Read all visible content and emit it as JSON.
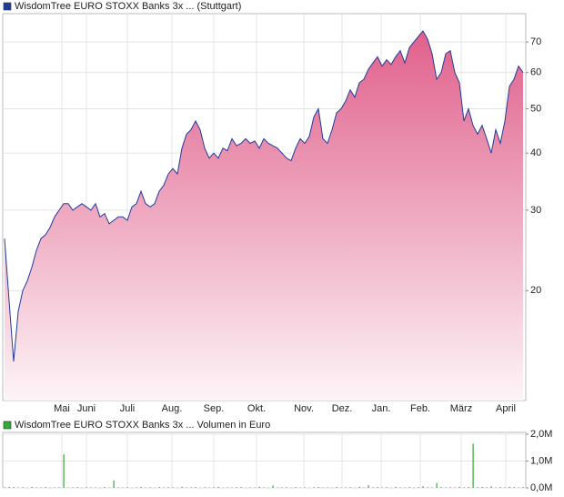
{
  "chart_data": [
    {
      "type": "area",
      "log_scale": true,
      "grid": true,
      "series": [
        {
          "name": "WisdomTree EURO STOXX Banks 3x ... (Stuttgart)",
          "color": "#1f3c9c",
          "values": [
            26,
            19,
            14,
            18,
            20,
            21,
            22.5,
            24.5,
            26,
            26.5,
            27.5,
            29,
            30,
            31,
            31,
            30,
            30.5,
            31,
            30.5,
            30,
            31,
            29,
            29.5,
            28,
            28.5,
            29,
            29,
            28.5,
            30.5,
            31,
            33,
            31,
            30.5,
            31,
            33,
            34,
            36,
            37,
            36,
            41,
            44,
            45,
            47,
            45,
            41,
            39,
            40,
            39,
            41,
            40.5,
            43,
            41.5,
            42,
            43,
            42,
            42.5,
            41,
            43,
            42,
            41.5,
            41,
            40,
            39,
            38.5,
            41,
            43,
            42,
            43.5,
            48,
            50,
            43,
            42,
            45,
            49,
            50,
            52,
            55,
            53,
            57,
            58,
            61,
            63,
            65,
            62,
            64,
            62.5,
            65,
            67,
            63,
            68,
            70,
            72,
            74,
            71,
            66,
            58,
            60,
            66,
            67,
            60,
            57,
            47,
            50,
            46,
            44,
            46,
            43,
            40,
            45,
            42,
            47,
            56,
            58,
            62,
            60
          ]
        }
      ],
      "xlim": [
        -0.4,
        114.6
      ],
      "xticks": [
        {
          "value": 12.6,
          "label": "Mai"
        },
        {
          "value": 18,
          "label": "Juni"
        },
        {
          "value": 27,
          "label": "Juli"
        },
        {
          "value": 36.8,
          "label": "Aug."
        },
        {
          "value": 46,
          "label": "Sep."
        },
        {
          "value": 55.4,
          "label": "Okt."
        },
        {
          "value": 65.8,
          "label": "Nov."
        },
        {
          "value": 74.2,
          "label": "Dez."
        },
        {
          "value": 82.8,
          "label": "Jan."
        },
        {
          "value": 91.4,
          "label": "Feb."
        },
        {
          "value": 100.4,
          "label": "März"
        },
        {
          "value": 110.2,
          "label": "April"
        }
      ],
      "ylim": [
        11.5,
        80
      ],
      "yticks": [
        20,
        30,
        40,
        50,
        60,
        70
      ]
    },
    {
      "type": "bar",
      "grid": true,
      "series": [
        {
          "name": "WisdomTree EURO STOXX Banks 3x ... Volumen in Euro",
          "color": "#33aa33",
          "values": [
            20000,
            40000,
            30000,
            15000,
            25000,
            10000,
            35000,
            20000,
            15000,
            30000,
            10000,
            20000,
            25000,
            1250000,
            15000,
            20000,
            30000,
            10000,
            25000,
            15000,
            20000,
            10000,
            30000,
            15000,
            280000,
            20000,
            15000,
            25000,
            10000,
            20000,
            35000,
            15000,
            20000,
            10000,
            30000,
            15000,
            25000,
            20000,
            10000,
            40000,
            15000,
            20000,
            30000,
            10000,
            25000,
            15000,
            20000,
            35000,
            10000,
            20000,
            15000,
            25000,
            30000,
            10000,
            20000,
            15000,
            40000,
            20000,
            10000,
            90000,
            15000,
            20000,
            25000,
            10000,
            30000,
            15000,
            20000,
            10000,
            25000,
            35000,
            15000,
            20000,
            10000,
            30000,
            15000,
            20000,
            25000,
            10000,
            40000,
            15000,
            100000,
            20000,
            30000,
            15000,
            25000,
            10000,
            35000,
            20000,
            15000,
            30000,
            10000,
            25000,
            60000,
            20000,
            15000,
            180000,
            30000,
            20000,
            25000,
            15000,
            40000,
            20000,
            30000,
            1650000,
            25000,
            35000,
            20000,
            60000,
            15000,
            30000,
            20000,
            40000,
            25000,
            15000,
            30000
          ]
        }
      ],
      "ylim": [
        0,
        2000000
      ],
      "yticks": [
        {
          "value": 0,
          "label": "0,0M"
        },
        {
          "value": 1000000,
          "label": "1,0M"
        },
        {
          "value": 2000000,
          "label": "2,0M"
        }
      ]
    }
  ]
}
